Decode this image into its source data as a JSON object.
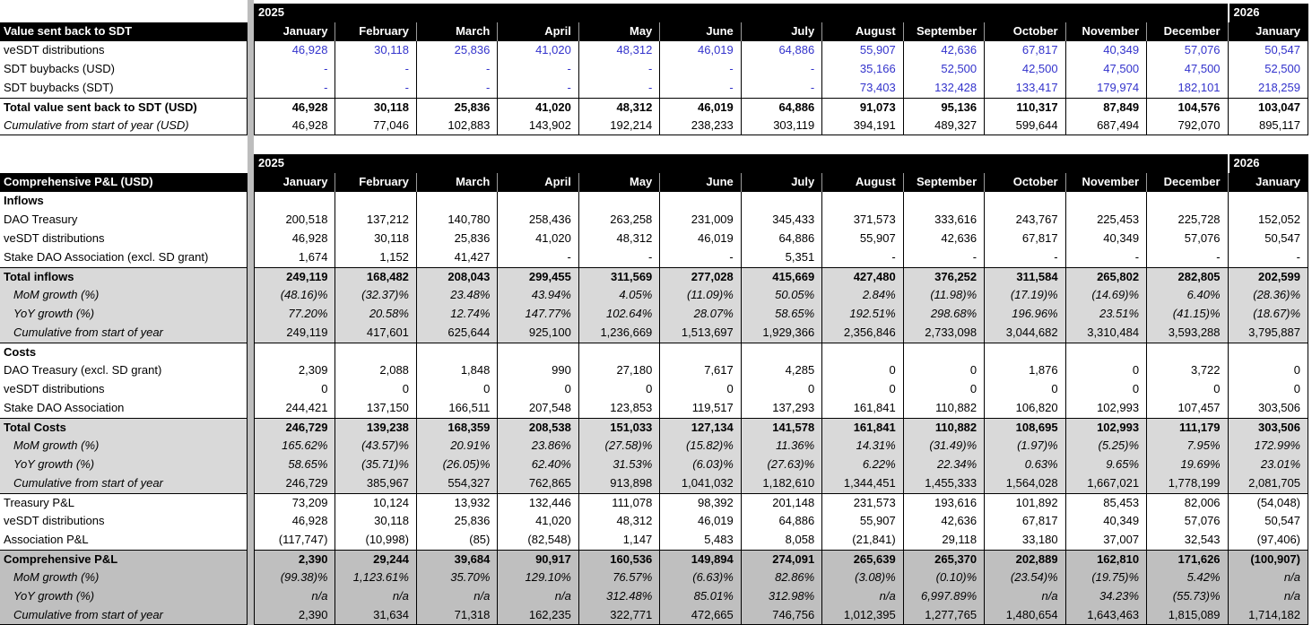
{
  "colors": {
    "header_bg": "#000000",
    "grid": "#000000",
    "input_blue": "#3333CC",
    "light_row": "#D9D9D9",
    "dark_row": "#BFBFBF",
    "divider": "#BDBDBD"
  },
  "table1": {
    "year_left": "2025",
    "year_right": "2026",
    "title": "Value sent back to SDT",
    "columns": [
      "January",
      "February",
      "March",
      "April",
      "May",
      "June",
      "July",
      "August",
      "September",
      "October",
      "November",
      "December",
      "January"
    ],
    "rows": [
      {
        "label": "veSDT distributions",
        "cls": "c-blue",
        "values": [
          "46,928",
          "30,118",
          "25,836",
          "41,020",
          "48,312",
          "46,019",
          "64,886",
          "55,907",
          "42,636",
          "67,817",
          "40,349",
          "57,076",
          "50,547"
        ]
      },
      {
        "label": "SDT buybacks (USD)",
        "cls": "c-blue",
        "values": [
          "-",
          "-",
          "-",
          "-",
          "-",
          "-",
          "-",
          "35,166",
          "52,500",
          "42,500",
          "47,500",
          "47,500",
          "52,500"
        ]
      },
      {
        "label": "SDT buybacks (SDT)",
        "cls": "c-blue",
        "values": [
          "-",
          "-",
          "-",
          "-",
          "-",
          "-",
          "-",
          "73,403",
          "132,428",
          "133,417",
          "179,974",
          "182,101",
          "218,259"
        ]
      },
      {
        "label": "Total value sent back to SDT (USD)",
        "cls": "bt bold",
        "values": [
          "46,928",
          "30,118",
          "25,836",
          "41,020",
          "48,312",
          "46,019",
          "64,886",
          "91,073",
          "95,136",
          "110,317",
          "87,849",
          "104,576",
          "103,047"
        ]
      },
      {
        "label": "Cumulative from start of year (USD)",
        "cls": "bb lbl-italic",
        "values": [
          "46,928",
          "77,046",
          "102,883",
          "143,902",
          "192,214",
          "238,233",
          "303,119",
          "394,191",
          "489,327",
          "599,644",
          "687,494",
          "792,070",
          "895,117"
        ]
      }
    ]
  },
  "table2": {
    "year_left": "2025",
    "year_right": "2026",
    "title": "Comprehensive P&L (USD)",
    "columns": [
      "January",
      "February",
      "March",
      "April",
      "May",
      "June",
      "July",
      "August",
      "September",
      "October",
      "November",
      "December",
      "January"
    ],
    "rows": [
      {
        "label": "Inflows",
        "cls": "section",
        "values": [
          "",
          "",
          "",
          "",
          "",
          "",
          "",
          "",
          "",
          "",
          "",
          "",
          ""
        ]
      },
      {
        "label": "DAO Treasury",
        "cls": "",
        "values": [
          "200,518",
          "137,212",
          "140,780",
          "258,436",
          "263,258",
          "231,009",
          "345,433",
          "371,573",
          "333,616",
          "243,767",
          "225,453",
          "225,728",
          "152,052"
        ]
      },
      {
        "label": "veSDT distributions",
        "cls": "",
        "values": [
          "46,928",
          "30,118",
          "25,836",
          "41,020",
          "48,312",
          "46,019",
          "64,886",
          "55,907",
          "42,636",
          "67,817",
          "40,349",
          "57,076",
          "50,547"
        ]
      },
      {
        "label": "Stake DAO Association (excl. SD grant)",
        "cls": "",
        "values": [
          "1,674",
          "1,152",
          "41,427",
          "-",
          "-",
          "-",
          "5,351",
          "-",
          "-",
          "-",
          "-",
          "-",
          "-"
        ]
      },
      {
        "label": "Total inflows",
        "cls": "bt bold bg-light",
        "values": [
          "249,119",
          "168,482",
          "208,043",
          "299,455",
          "311,569",
          "277,028",
          "415,669",
          "427,480",
          "376,252",
          "311,584",
          "265,802",
          "282,805",
          "202,599"
        ]
      },
      {
        "label": "MoM growth (%)",
        "cls": "bg-light italic ind",
        "values": [
          "(48.16)%",
          "(32.37)%",
          "23.48%",
          "43.94%",
          "4.05%",
          "(11.09)%",
          "50.05%",
          "2.84%",
          "(11.98)%",
          "(17.19)%",
          "(14.69)%",
          "6.40%",
          "(28.36)%"
        ]
      },
      {
        "label": "YoY growth (%)",
        "cls": "bg-light italic ind",
        "values": [
          "77.20%",
          "20.58%",
          "12.74%",
          "147.77%",
          "102.64%",
          "28.07%",
          "58.65%",
          "192.51%",
          "298.68%",
          "196.96%",
          "23.51%",
          "(41.15)%",
          "(18.67)%"
        ]
      },
      {
        "label": "Cumulative from start of year",
        "cls": "bg-light lbl-italic ind",
        "values": [
          "249,119",
          "417,601",
          "625,644",
          "925,100",
          "1,236,669",
          "1,513,697",
          "1,929,366",
          "2,356,846",
          "2,733,098",
          "3,044,682",
          "3,310,484",
          "3,593,288",
          "3,795,887"
        ]
      },
      {
        "label": "Costs",
        "cls": "bt section",
        "values": [
          "",
          "",
          "",
          "",
          "",
          "",
          "",
          "",
          "",
          "",
          "",
          "",
          ""
        ]
      },
      {
        "label": "DAO Treasury (excl. SD grant)",
        "cls": "",
        "values": [
          "2,309",
          "2,088",
          "1,848",
          "990",
          "27,180",
          "7,617",
          "4,285",
          "0",
          "0",
          "1,876",
          "0",
          "3,722",
          "0"
        ]
      },
      {
        "label": "veSDT distributions",
        "cls": "",
        "values": [
          "0",
          "0",
          "0",
          "0",
          "0",
          "0",
          "0",
          "0",
          "0",
          "0",
          "0",
          "0",
          "0"
        ]
      },
      {
        "label": "Stake DAO Association",
        "cls": "",
        "values": [
          "244,421",
          "137,150",
          "166,511",
          "207,548",
          "123,853",
          "119,517",
          "137,293",
          "161,841",
          "110,882",
          "106,820",
          "102,993",
          "107,457",
          "303,506"
        ]
      },
      {
        "label": "Total Costs",
        "cls": "bt bold bg-light",
        "values": [
          "246,729",
          "139,238",
          "168,359",
          "208,538",
          "151,033",
          "127,134",
          "141,578",
          "161,841",
          "110,882",
          "108,695",
          "102,993",
          "111,179",
          "303,506"
        ]
      },
      {
        "label": "MoM growth (%)",
        "cls": "bg-light italic ind",
        "values": [
          "165.62%",
          "(43.57)%",
          "20.91%",
          "23.86%",
          "(27.58)%",
          "(15.82)%",
          "11.36%",
          "14.31%",
          "(31.49)%",
          "(1.97)%",
          "(5.25)%",
          "7.95%",
          "172.99%"
        ]
      },
      {
        "label": "YoY growth (%)",
        "cls": "bg-light italic ind",
        "values": [
          "58.65%",
          "(35.71)%",
          "(26.05)%",
          "62.40%",
          "31.53%",
          "(6.03)%",
          "(27.63)%",
          "6.22%",
          "22.34%",
          "0.63%",
          "9.65%",
          "19.69%",
          "23.01%"
        ]
      },
      {
        "label": "Cumulative from start of year",
        "cls": "bg-light lbl-italic ind",
        "values": [
          "246,729",
          "385,967",
          "554,327",
          "762,865",
          "913,898",
          "1,041,032",
          "1,182,610",
          "1,344,451",
          "1,455,333",
          "1,564,028",
          "1,667,021",
          "1,778,199",
          "2,081,705"
        ]
      },
      {
        "label": "Treasury P&L",
        "cls": "bt",
        "values": [
          "73,209",
          "10,124",
          "13,932",
          "132,446",
          "111,078",
          "98,392",
          "201,148",
          "231,573",
          "193,616",
          "101,892",
          "85,453",
          "82,006",
          "(54,048)"
        ]
      },
      {
        "label": "veSDT distributions",
        "cls": "",
        "values": [
          "46,928",
          "30,118",
          "25,836",
          "41,020",
          "48,312",
          "46,019",
          "64,886",
          "55,907",
          "42,636",
          "67,817",
          "40,349",
          "57,076",
          "50,547"
        ]
      },
      {
        "label": "Association P&L",
        "cls": "",
        "values": [
          "(117,747)",
          "(10,998)",
          "(85)",
          "(82,548)",
          "1,147",
          "5,483",
          "8,058",
          "(21,841)",
          "29,118",
          "33,180",
          "37,007",
          "32,543",
          "(97,406)"
        ]
      },
      {
        "label": "Comprehensive P&L",
        "cls": "bt bold bg-dark",
        "values": [
          "2,390",
          "29,244",
          "39,684",
          "90,917",
          "160,536",
          "149,894",
          "274,091",
          "265,639",
          "265,370",
          "202,889",
          "162,810",
          "171,626",
          "(100,907)"
        ]
      },
      {
        "label": "MoM growth (%)",
        "cls": "bg-dark italic ind",
        "values": [
          "(99.38)%",
          "1,123.61%",
          "35.70%",
          "129.10%",
          "76.57%",
          "(6.63)%",
          "82.86%",
          "(3.08)%",
          "(0.10)%",
          "(23.54)%",
          "(19.75)%",
          "5.42%",
          "n/a"
        ]
      },
      {
        "label": "YoY growth (%)",
        "cls": "bg-dark italic ind",
        "values": [
          "n/a",
          "n/a",
          "n/a",
          "n/a",
          "312.48%",
          "85.01%",
          "312.98%",
          "n/a",
          "6,997.89%",
          "n/a",
          "34.23%",
          "(55.73)%",
          "n/a"
        ]
      },
      {
        "label": "Cumulative from start of year",
        "cls": "bg-dark lbl-italic ind bb",
        "values": [
          "2,390",
          "31,634",
          "71,318",
          "162,235",
          "322,771",
          "472,665",
          "746,756",
          "1,012,395",
          "1,277,765",
          "1,480,654",
          "1,643,463",
          "1,815,089",
          "1,714,182"
        ]
      }
    ]
  }
}
